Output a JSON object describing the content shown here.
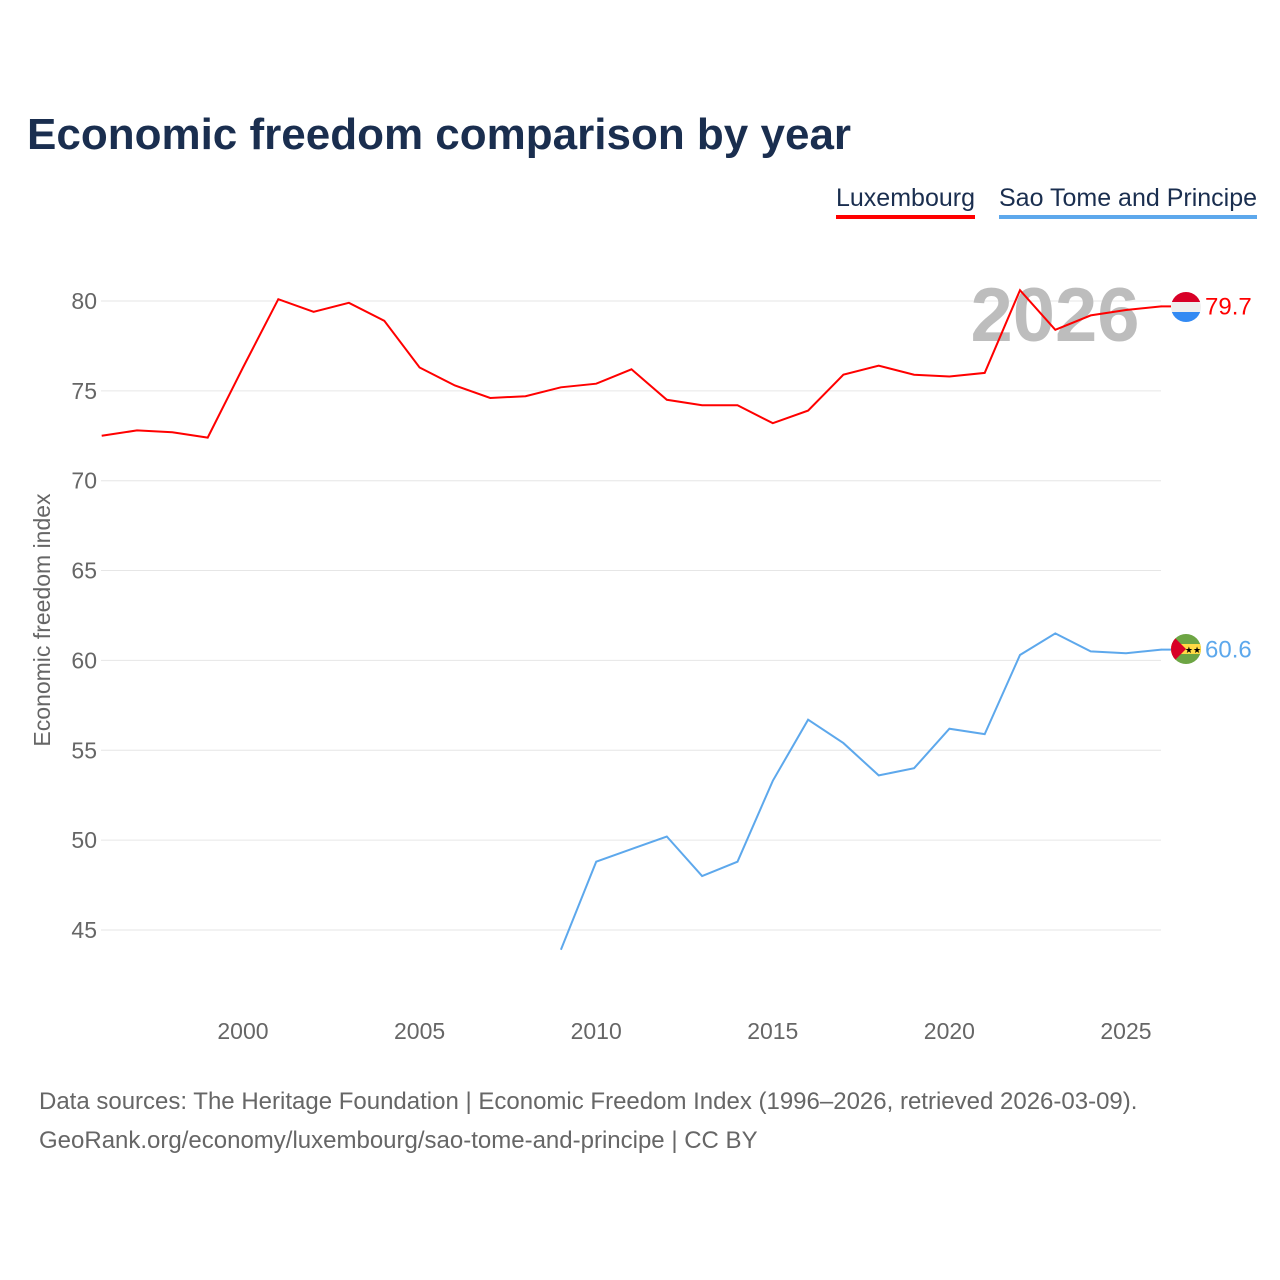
{
  "chart_data": {
    "type": "line",
    "title": "Economic freedom comparison by year",
    "ylabel": "Economic freedom index",
    "xlabel": "",
    "ylim": [
      40,
      83
    ],
    "xlim": [
      1996,
      2026
    ],
    "yticks": [
      45,
      50,
      55,
      60,
      65,
      70,
      75,
      80
    ],
    "xticks": [
      2000,
      2005,
      2010,
      2015,
      2020,
      2025
    ],
    "grid": true,
    "year_watermark": "2026",
    "series": [
      {
        "name": "Luxembourg",
        "color": "#ff0000",
        "end_label": "79.7",
        "x": [
          1996,
          1997,
          1998,
          1999,
          2000,
          2001,
          2002,
          2003,
          2004,
          2005,
          2006,
          2007,
          2008,
          2009,
          2010,
          2011,
          2012,
          2013,
          2014,
          2015,
          2016,
          2017,
          2018,
          2019,
          2020,
          2021,
          2022,
          2023,
          2024,
          2025,
          2026
        ],
        "values": [
          72.5,
          72.8,
          72.7,
          72.4,
          76.3,
          80.1,
          79.4,
          79.9,
          78.9,
          76.3,
          75.3,
          74.6,
          74.7,
          75.2,
          75.4,
          76.2,
          74.5,
          74.2,
          74.2,
          73.2,
          73.9,
          75.9,
          76.4,
          75.9,
          75.8,
          76.0,
          80.6,
          78.4,
          79.2,
          79.5,
          79.7
        ]
      },
      {
        "name": "Sao Tome and Principe",
        "color": "#5da8ec",
        "end_label": "60.6",
        "x": [
          2009,
          2010,
          2011,
          2012,
          2013,
          2014,
          2015,
          2016,
          2017,
          2018,
          2019,
          2020,
          2021,
          2022,
          2023,
          2024,
          2025,
          2026
        ],
        "values": [
          43.9,
          48.8,
          49.5,
          50.2,
          48.0,
          48.8,
          53.3,
          56.7,
          55.4,
          53.6,
          54.0,
          56.2,
          55.9,
          60.3,
          61.5,
          60.5,
          60.4,
          60.6
        ]
      }
    ]
  },
  "footer": {
    "line1": "Data sources: The Heritage Foundation | Economic Freedom Index (1996–2026, retrieved 2026-03-09).",
    "line2": "GeoRank.org/economy/luxembourg/sao-tome-and-principe | CC BY"
  }
}
